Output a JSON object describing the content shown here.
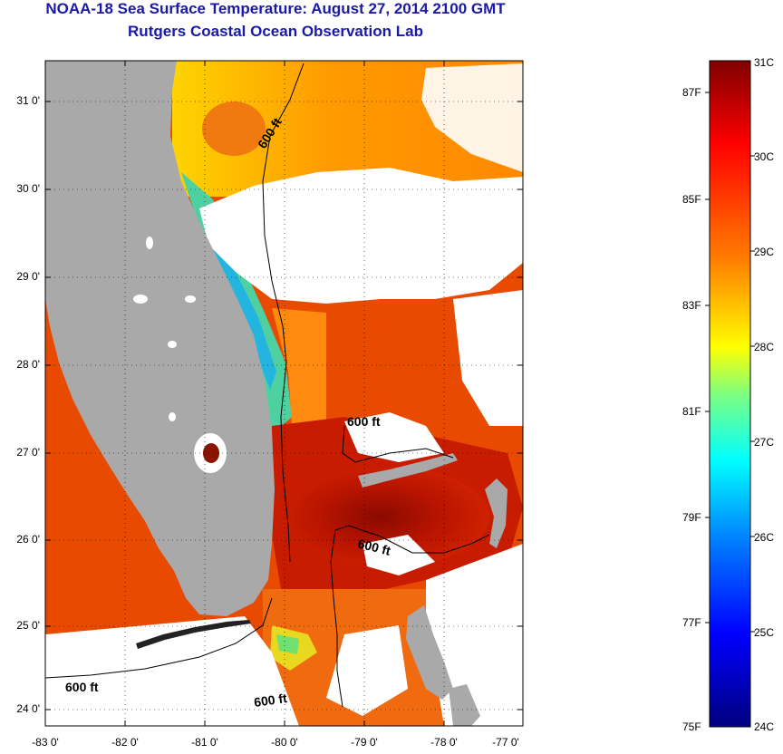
{
  "header": {
    "title": "NOAA-18 Sea Surface Temperature:  August 27, 2014 2100 GMT",
    "subtitle": "Rutgers Coastal Ocean Observation Lab"
  },
  "map": {
    "lon_range": [
      -83,
      -77
    ],
    "lat_range": [
      23.8,
      31.4
    ],
    "x_ticks": [
      "-83 0'",
      "-82 0'",
      "-81 0'",
      "-80 0'",
      "-79 0'",
      "-78 0'",
      "-77 0'"
    ],
    "y_ticks": [
      "31 0'",
      "30 0'",
      "29 0'",
      "28 0'",
      "27 0'",
      "26 0'",
      "25 0'",
      "24 0'"
    ],
    "contour_labels": [
      "600 ft",
      "600 ft",
      "600 ft",
      "600 ft",
      "600 ft"
    ],
    "colors": {
      "land": "#a9a9a9",
      "cloud": "#ffffff",
      "grid": "#000000"
    }
  },
  "colorbar": {
    "celsius_labels": [
      "31C",
      "30C",
      "29C",
      "28C",
      "27C",
      "26C",
      "25C",
      "24C"
    ],
    "fahrenheit_labels": [
      "87F",
      "85F",
      "83F",
      "81F",
      "79F",
      "77F",
      "75F"
    ],
    "c_range": [
      24,
      31
    ],
    "colors": [
      "#00007f",
      "#0000ff",
      "#007fff",
      "#00ffff",
      "#7fff7f",
      "#ffff00",
      "#ff7f00",
      "#ff0000",
      "#7f0000"
    ]
  }
}
